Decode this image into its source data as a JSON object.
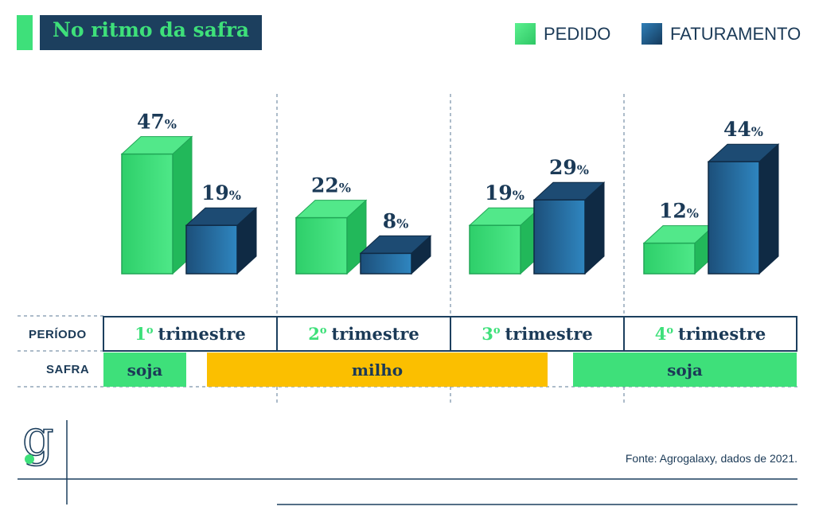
{
  "title": "No ritmo da safra",
  "legend": [
    {
      "label": "PEDIDO",
      "color": "#3ee07a"
    },
    {
      "label": "FATURAMENTO",
      "color": "#1f5f8f"
    }
  ],
  "row_labels": {
    "period": "PERÍODO",
    "safra": "SAFRA"
  },
  "periods": [
    {
      "ord": "1",
      "sup": "o",
      "label": "trimestre"
    },
    {
      "ord": "2",
      "sup": "o",
      "label": "trimestre"
    },
    {
      "ord": "3",
      "sup": "o",
      "label": "trimestre"
    },
    {
      "ord": "4",
      "sup": "o",
      "label": "trimestre"
    }
  ],
  "safra": [
    {
      "label": "soja",
      "color": "#3ee07a"
    },
    {
      "label": "milho",
      "color": "#fbbf00"
    },
    {
      "label": "soja",
      "color": "#3ee07a"
    }
  ],
  "source": "Fonte: Agrogalaxy, dados de 2021.",
  "logo": "g",
  "chart_data": {
    "type": "bar",
    "categories": [
      "1º trimestre",
      "2º trimestre",
      "3º trimestre",
      "4º trimestre"
    ],
    "series": [
      {
        "name": "PEDIDO",
        "values": [
          47,
          22,
          19,
          12
        ]
      },
      {
        "name": "FATURAMENTO",
        "values": [
          19,
          8,
          29,
          44
        ]
      }
    ],
    "unit": "%",
    "colors": {
      "PEDIDO": "#3ee07a",
      "FATURAMENTO": "#1f5f8f"
    }
  }
}
